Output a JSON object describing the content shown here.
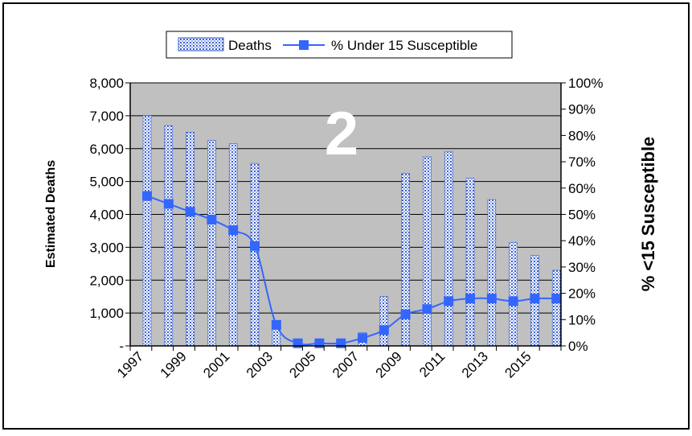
{
  "chart_data": {
    "type": "bar+line",
    "annotation": "2",
    "ylabel": "Estimated Deaths",
    "y2label": "% <15 Susceptible",
    "ylim": [
      0,
      8000
    ],
    "y2lim": [
      0,
      100
    ],
    "y_ticks": [
      "-",
      "1,000",
      "2,000",
      "3,000",
      "4,000",
      "5,000",
      "6,000",
      "7,000",
      "8,000"
    ],
    "y2_ticks": [
      "0%",
      "10%",
      "20%",
      "30%",
      "40%",
      "50%",
      "60%",
      "70%",
      "80%",
      "90%",
      "100%"
    ],
    "x_tick_labels": [
      "1997",
      "1999",
      "2001",
      "2003",
      "2005",
      "2007",
      "2009",
      "2011",
      "2013",
      "2015"
    ],
    "categories": [
      "1997",
      "1998",
      "1999",
      "2000",
      "2001",
      "2002",
      "2003",
      "2004",
      "2005",
      "2006",
      "2007",
      "2008",
      "2009",
      "2010",
      "2011",
      "2012",
      "2013",
      "2014",
      "2015",
      "2016"
    ],
    "series": [
      {
        "name": "Deaths",
        "type": "bar",
        "axis": "left",
        "values": [
          7000,
          6700,
          6500,
          6250,
          6150,
          5550,
          700,
          0,
          0,
          0,
          400,
          1500,
          5250,
          5750,
          5900,
          5100,
          4450,
          3150,
          2750,
          2300
        ]
      },
      {
        "name": "% Under 15 Susceptible",
        "type": "line",
        "axis": "right",
        "values": [
          57,
          54,
          51,
          48,
          44,
          38,
          8,
          1,
          1,
          1,
          3,
          6,
          12,
          14,
          17,
          18,
          18,
          17,
          18,
          18
        ]
      }
    ],
    "plot_color": "#c0c0c0",
    "line_color": "#3366ff",
    "bar_color": "#3a5fcd",
    "grid": true,
    "legend_position": "top"
  }
}
